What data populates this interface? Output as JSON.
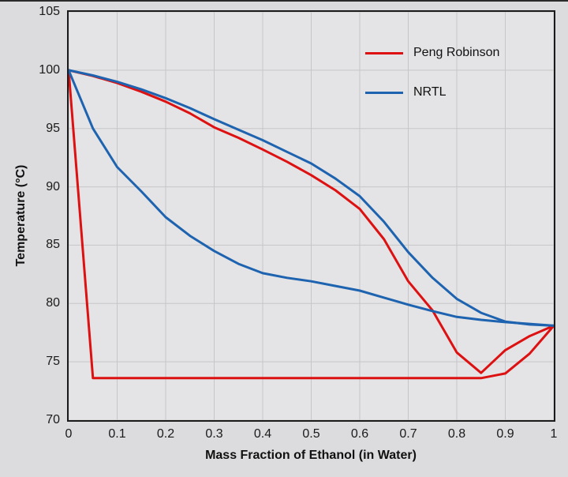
{
  "page": {
    "background_color": "#dcdcde",
    "top_edge_color": "#2b2b2b"
  },
  "chart_data": {
    "type": "line",
    "title": "",
    "xlabel": "Mass Fraction of Ethanol (in Water)",
    "ylabel": "Temperature (°C)",
    "xlim": [
      0,
      1
    ],
    "ylim": [
      70,
      105
    ],
    "grid": true,
    "legend_position": "upper-right",
    "colors": {
      "plot_background": "#e4e4e6",
      "gridline": "#c6c6c8",
      "axis_frame": "#1a1a1a",
      "peng_robinson": "#dd1111",
      "nrtl": "#1e63af"
    },
    "xticks": {
      "values": [
        0,
        0.1,
        0.2,
        0.3,
        0.4,
        0.5,
        0.6,
        0.7,
        0.8,
        0.9,
        1
      ],
      "labels": [
        "0",
        "0.1",
        "0.2",
        "0.3",
        "0.4",
        "0.5",
        "0.6",
        "0.7",
        "0.8",
        "0.9",
        "1"
      ]
    },
    "yticks": {
      "values": [
        70,
        75,
        80,
        85,
        90,
        95,
        100,
        105
      ],
      "labels": [
        "70",
        "75",
        "80",
        "85",
        "90",
        "95",
        "100",
        "105"
      ]
    },
    "series": [
      {
        "name": "Peng Robinson",
        "color": "#dd1111",
        "branches": {
          "dew": [
            [
              0,
              100
            ],
            [
              0.05,
              99.5
            ],
            [
              0.1,
              98.9
            ],
            [
              0.15,
              98.15
            ],
            [
              0.2,
              97.3
            ],
            [
              0.25,
              96.3
            ],
            [
              0.3,
              95.1
            ],
            [
              0.35,
              94.2
            ],
            [
              0.4,
              93.2
            ],
            [
              0.45,
              92.15
            ],
            [
              0.5,
              91.0
            ],
            [
              0.55,
              89.7
            ],
            [
              0.6,
              88.1
            ],
            [
              0.65,
              85.5
            ],
            [
              0.7,
              81.9
            ],
            [
              0.75,
              79.4
            ],
            [
              0.8,
              75.8
            ],
            [
              0.85,
              74.05
            ],
            [
              0.9,
              76.0
            ],
            [
              0.95,
              77.2
            ],
            [
              1,
              78.1
            ]
          ],
          "bubble": [
            [
              0,
              100
            ],
            [
              0.05,
              73.6
            ],
            [
              0.85,
              73.6
            ],
            [
              0.9,
              74.0
            ],
            [
              0.95,
              75.7
            ],
            [
              1,
              78.1
            ]
          ]
        }
      },
      {
        "name": "NRTL",
        "color": "#1e63af",
        "branches": {
          "dew": [
            [
              0,
              100
            ],
            [
              0.05,
              99.55
            ],
            [
              0.1,
              99.0
            ],
            [
              0.15,
              98.35
            ],
            [
              0.2,
              97.6
            ],
            [
              0.25,
              96.75
            ],
            [
              0.3,
              95.8
            ],
            [
              0.35,
              94.9
            ],
            [
              0.4,
              94.0
            ],
            [
              0.45,
              93.0
            ],
            [
              0.5,
              92.0
            ],
            [
              0.55,
              90.7
            ],
            [
              0.6,
              89.2
            ],
            [
              0.65,
              87.0
            ],
            [
              0.7,
              84.4
            ],
            [
              0.75,
              82.2
            ],
            [
              0.8,
              80.4
            ],
            [
              0.85,
              79.2
            ],
            [
              0.9,
              78.45
            ],
            [
              0.95,
              78.2
            ],
            [
              1,
              78.1
            ]
          ],
          "bubble": [
            [
              0,
              100
            ],
            [
              0.05,
              95.0
            ],
            [
              0.1,
              91.7
            ],
            [
              0.15,
              89.6
            ],
            [
              0.2,
              87.4
            ],
            [
              0.25,
              85.8
            ],
            [
              0.3,
              84.5
            ],
            [
              0.35,
              83.4
            ],
            [
              0.4,
              82.6
            ],
            [
              0.45,
              82.2
            ],
            [
              0.5,
              81.9
            ],
            [
              0.55,
              81.5
            ],
            [
              0.6,
              81.1
            ],
            [
              0.65,
              80.5
            ],
            [
              0.7,
              79.9
            ],
            [
              0.75,
              79.35
            ],
            [
              0.8,
              78.85
            ],
            [
              0.85,
              78.6
            ],
            [
              0.9,
              78.4
            ],
            [
              0.95,
              78.25
            ],
            [
              1,
              78.1
            ]
          ]
        }
      }
    ]
  }
}
